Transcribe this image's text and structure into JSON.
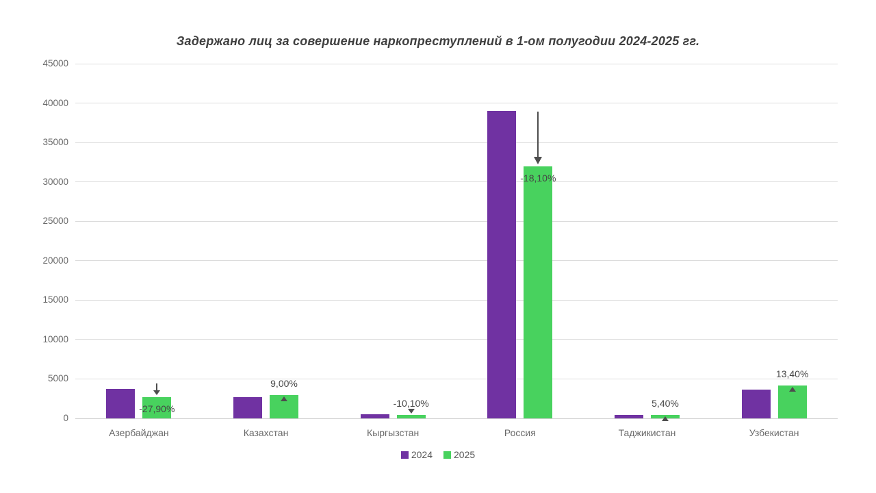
{
  "chart_data": {
    "type": "bar",
    "title": "Задержано лиц за совершение наркопреступлений в 1-ом полугодии 2024-2025 гг.",
    "categories": [
      "Азербайджан",
      "Казахстан",
      "Кыргызстан",
      "Россия",
      "Таджикистан",
      "Узбекистан"
    ],
    "series": [
      {
        "name": "2024",
        "color": "#7032A2",
        "values": [
          3750,
          2700,
          500,
          39000,
          420,
          3660
        ]
      },
      {
        "name": "2025",
        "color": "#48D25E",
        "values": [
          2704,
          2943,
          449,
          31940,
          443,
          4150
        ]
      }
    ],
    "annotations": [
      {
        "label": "-27,90%",
        "direction": "down",
        "marker": "arrow-short",
        "placement": "inside"
      },
      {
        "label": "9,00%",
        "direction": "up",
        "marker": "triangle",
        "placement": "above"
      },
      {
        "label": "-10,10%",
        "direction": "down",
        "marker": "triangle",
        "placement": "above"
      },
      {
        "label": "-18,10%",
        "direction": "down",
        "marker": "arrow-long",
        "placement": "inside"
      },
      {
        "label": "5,40%",
        "direction": "up",
        "marker": "triangle",
        "placement": "above"
      },
      {
        "label": "13,40%",
        "direction": "up",
        "marker": "triangle",
        "placement": "above"
      }
    ],
    "y_axis": {
      "min": 0,
      "max": 45000,
      "step": 5000,
      "ticks": [
        "0",
        "5000",
        "10000",
        "15000",
        "20000",
        "25000",
        "30000",
        "35000",
        "40000",
        "45000"
      ]
    },
    "grid": true,
    "legend_position": "bottom",
    "xlabel": "",
    "ylabel": ""
  },
  "colors": {
    "background": "#ffffff",
    "gridline": "#dcdcdc",
    "axis_text": "#686868",
    "title_text": "#3f3f3f",
    "annotation_text": "#454545",
    "marker": "#4d4d4d",
    "series_2024": "#7032A2",
    "series_2025": "#48D25E"
  }
}
